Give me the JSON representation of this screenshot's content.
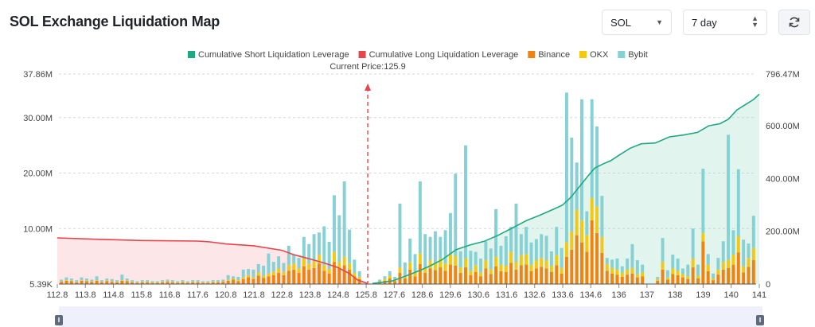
{
  "header": {
    "title": "SOL Exchange Liquidation Map",
    "symbol": "SOL",
    "period": "7 day",
    "refresh_icon": "refresh-icon"
  },
  "chart_data": {
    "type": "bar",
    "title": "SOL Exchange Liquidation Map",
    "current_price_label": "Current Price:125.9",
    "current_price": 125.9,
    "x_ticks": [
      "112.8",
      "113.8",
      "114.8",
      "115.8",
      "116.8",
      "117.6",
      "120.8",
      "121.8",
      "122.8",
      "123.8",
      "124.8",
      "125.8",
      "127.6",
      "128.6",
      "129.6",
      "130.6",
      "131.6",
      "132.6",
      "133.6",
      "134.6",
      "136",
      "137",
      "138",
      "139",
      "140",
      "141"
    ],
    "y_left_ticks": [
      "5.39K",
      "10.00M",
      "20.00M",
      "30.00M",
      "37.86M"
    ],
    "y_left_values": [
      0.00539,
      10,
      20,
      30,
      37.86
    ],
    "y_right_ticks": [
      "0",
      "200.00M",
      "400.00M",
      "600.00M",
      "796.47M"
    ],
    "y_right_values": [
      0,
      200,
      400,
      600,
      796.47
    ],
    "legend": [
      {
        "name": "Cumulative Short Liquidation Leverage",
        "color": "#1fa882",
        "kind": "line"
      },
      {
        "name": "Cumulative Long Liquidation Leverage",
        "color": "#e8444c",
        "kind": "line"
      },
      {
        "name": "Binance",
        "color": "#f0830d",
        "kind": "bar"
      },
      {
        "name": "OKX",
        "color": "#f2c811",
        "kind": "bar"
      },
      {
        "name": "Bybit",
        "color": "#86d1d3",
        "kind": "bar"
      }
    ],
    "bars": {
      "x_start": 112.8,
      "x_end": 141,
      "binance": [
        0.4,
        0.6,
        0.5,
        0.3,
        0.6,
        0.5,
        0.4,
        0.6,
        0.3,
        0.5,
        0.4,
        0.3,
        0.6,
        0.5,
        0.3,
        0.2,
        0.3,
        0.3,
        0.2,
        0.2,
        0.3,
        0.4,
        0.3,
        0.2,
        0.3,
        0.2,
        0.3,
        0.3,
        0.2,
        0.2,
        0.3,
        0.3,
        0.4,
        0.6,
        0.8,
        0.5,
        0.9,
        1.2,
        0.9,
        1.5,
        1.1,
        1.4,
        1.6,
        2.0,
        1.6,
        2.4,
        2.6,
        2.0,
        3.2,
        2.6,
        2.9,
        3.7,
        2.4,
        1.9,
        4.0,
        2.8,
        3.4,
        2.6,
        1.4,
        0.9,
        0,
        0,
        0,
        0.3,
        0.6,
        1.0,
        0.5,
        2.0,
        1.0,
        2.6,
        1.4,
        3.6,
        2.0,
        2.8,
        2.5,
        3.0,
        2.4,
        3.5,
        3.3,
        2.0,
        3.0,
        1.6,
        2.2,
        1.4,
        2.8,
        1.8,
        3.2,
        2.3,
        2.2,
        3.8,
        2.6,
        3.4,
        3.5,
        2.3,
        2.8,
        3.1,
        2.8,
        2.2,
        3.4,
        1.9,
        4.9,
        6.2,
        8.8,
        7.5,
        5.8,
        11.5,
        9.2,
        5.6,
        2.4,
        1.9,
        1.7,
        1.3,
        1.7,
        1.9,
        1.2,
        1.4,
        0,
        0,
        0.6,
        2.6,
        0.8,
        1.8,
        1.6,
        1.2,
        0.9,
        3.0,
        1.0,
        7.7,
        2.3,
        0.7,
        1.7,
        2.6,
        2.9,
        3.5,
        5.7,
        2.1,
        3.1,
        4.3
      ],
      "okx": [
        0.1,
        0.1,
        0.1,
        0.1,
        0.1,
        0.1,
        0.1,
        0.1,
        0.1,
        0.1,
        0.1,
        0.1,
        0.1,
        0.1,
        0.1,
        0.1,
        0.1,
        0.1,
        0.1,
        0.1,
        0.1,
        0.1,
        0.1,
        0.1,
        0.1,
        0.1,
        0.1,
        0.1,
        0.1,
        0.1,
        0.1,
        0.1,
        0.1,
        0.2,
        0.2,
        0.2,
        0.3,
        0.4,
        0.3,
        0.6,
        0.4,
        0.5,
        0.6,
        0.8,
        0.6,
        1.0,
        1.1,
        0.8,
        1.4,
        1.1,
        1.2,
        1.6,
        1.0,
        0.8,
        1.8,
        1.2,
        1.5,
        1.1,
        0.6,
        0.4,
        0,
        0,
        0,
        0.2,
        0.3,
        0.5,
        0.3,
        1.0,
        0.5,
        1.3,
        0.7,
        1.9,
        1.0,
        1.5,
        1.3,
        1.6,
        1.3,
        1.9,
        1.8,
        1.0,
        1.6,
        0.8,
        1.2,
        0.7,
        1.5,
        0.9,
        1.7,
        1.2,
        1.1,
        2.0,
        1.4,
        1.8,
        1.9,
        1.2,
        1.5,
        1.6,
        1.5,
        1.1,
        1.8,
        1.0,
        2.6,
        3.3,
        4.6,
        4.0,
        3.0,
        4.0,
        4.8,
        2.9,
        1.2,
        1.0,
        0.9,
        0.7,
        0.9,
        1.0,
        0.6,
        0.7,
        0,
        0,
        0.3,
        1.4,
        0.4,
        1.0,
        0.8,
        0.6,
        0.5,
        1.6,
        0.5,
        1.5,
        1.2,
        0.3,
        0.9,
        1.4,
        1.5,
        1.8,
        2.9,
        1.1,
        1.6,
        2.2
      ],
      "bybit": [
        0.3,
        0.5,
        0.4,
        0.3,
        0.5,
        0.4,
        0.3,
        0.7,
        0.3,
        0.4,
        0.4,
        0.3,
        1.0,
        0.4,
        0.3,
        0.2,
        0.3,
        0.3,
        0.2,
        0.2,
        0.3,
        0.3,
        0.3,
        0.2,
        0.3,
        0.2,
        0.3,
        0.3,
        0.2,
        0.2,
        0.3,
        0.3,
        0.3,
        0.8,
        0.4,
        0.6,
        1.4,
        1.1,
        1.4,
        1.5,
        1.8,
        3.6,
        1.8,
        2.2,
        1.6,
        3.5,
        1.6,
        1.9,
        3.9,
        3.5,
        4.9,
        4.0,
        7.0,
        4.9,
        10.2,
        8.4,
        13.6,
        6.1,
        2.4,
        1.0,
        0,
        0,
        0,
        0.3,
        0.5,
        0.8,
        0.5,
        11.5,
        2.4,
        4.3,
        3.3,
        13.0,
        6.0,
        4.2,
        5.7,
        3.9,
        6.0,
        7.4,
        14.8,
        2.9,
        20.4,
        3.6,
        2.4,
        2.5,
        3.4,
        3.7,
        8.6,
        3.4,
        5.3,
        4.5,
        10.5,
        3.8,
        4.9,
        4.0,
        3.8,
        4.3,
        4.4,
        2.6,
        5.1,
        3.6,
        27.0,
        16.9,
        8.5,
        21.8,
        4.3,
        17.8,
        14.4,
        7.4,
        1.1,
        1.5,
        2.0,
        1.2,
        2.0,
        4.3,
        2.5,
        1.4,
        0,
        0,
        0.4,
        4.3,
        1.3,
        2.5,
        2.2,
        1.0,
        2.1,
        5.4,
        2.0,
        11.6,
        1.9,
        0.9,
        2.1,
        3.7,
        22.5,
        4.4,
        12.1,
        4.8,
        2.6,
        5.8
      ]
    },
    "short_line": {
      "points": [
        [
          126.2,
          2
        ],
        [
          127.5,
          12
        ],
        [
          128.2,
          38
        ],
        [
          128.8,
          65
        ],
        [
          129.3,
          92
        ],
        [
          129.8,
          130
        ],
        [
          130.3,
          148
        ],
        [
          130.8,
          162
        ],
        [
          131.3,
          185
        ],
        [
          131.8,
          212
        ],
        [
          132.3,
          240
        ],
        [
          132.8,
          262
        ],
        [
          133.3,
          285
        ],
        [
          133.6,
          300
        ],
        [
          133.9,
          330
        ],
        [
          134.2,
          370
        ],
        [
          134.5,
          410
        ],
        [
          134.8,
          440
        ],
        [
          135.2,
          455
        ],
        [
          135.6,
          468
        ],
        [
          136.0,
          488
        ],
        [
          136.4,
          515
        ],
        [
          136.8,
          532
        ],
        [
          137.3,
          535
        ],
        [
          137.8,
          558
        ],
        [
          138.3,
          565
        ],
        [
          138.8,
          575
        ],
        [
          139.2,
          600
        ],
        [
          139.6,
          608
        ],
        [
          139.9,
          625
        ],
        [
          140.2,
          660
        ],
        [
          140.5,
          680
        ],
        [
          140.8,
          700
        ],
        [
          141.0,
          720
        ]
      ]
    },
    "long_line": {
      "points": [
        [
          112.8,
          175
        ],
        [
          114.2,
          170
        ],
        [
          115.8,
          165
        ],
        [
          117.6,
          163
        ],
        [
          119.0,
          160
        ],
        [
          120.8,
          152
        ],
        [
          121.8,
          145
        ],
        [
          122.8,
          128
        ],
        [
          123.2,
          112
        ],
        [
          123.8,
          95
        ],
        [
          124.3,
          80
        ],
        [
          124.8,
          62
        ],
        [
          125.2,
          40
        ],
        [
          125.5,
          15
        ],
        [
          125.9,
          2
        ]
      ]
    }
  }
}
